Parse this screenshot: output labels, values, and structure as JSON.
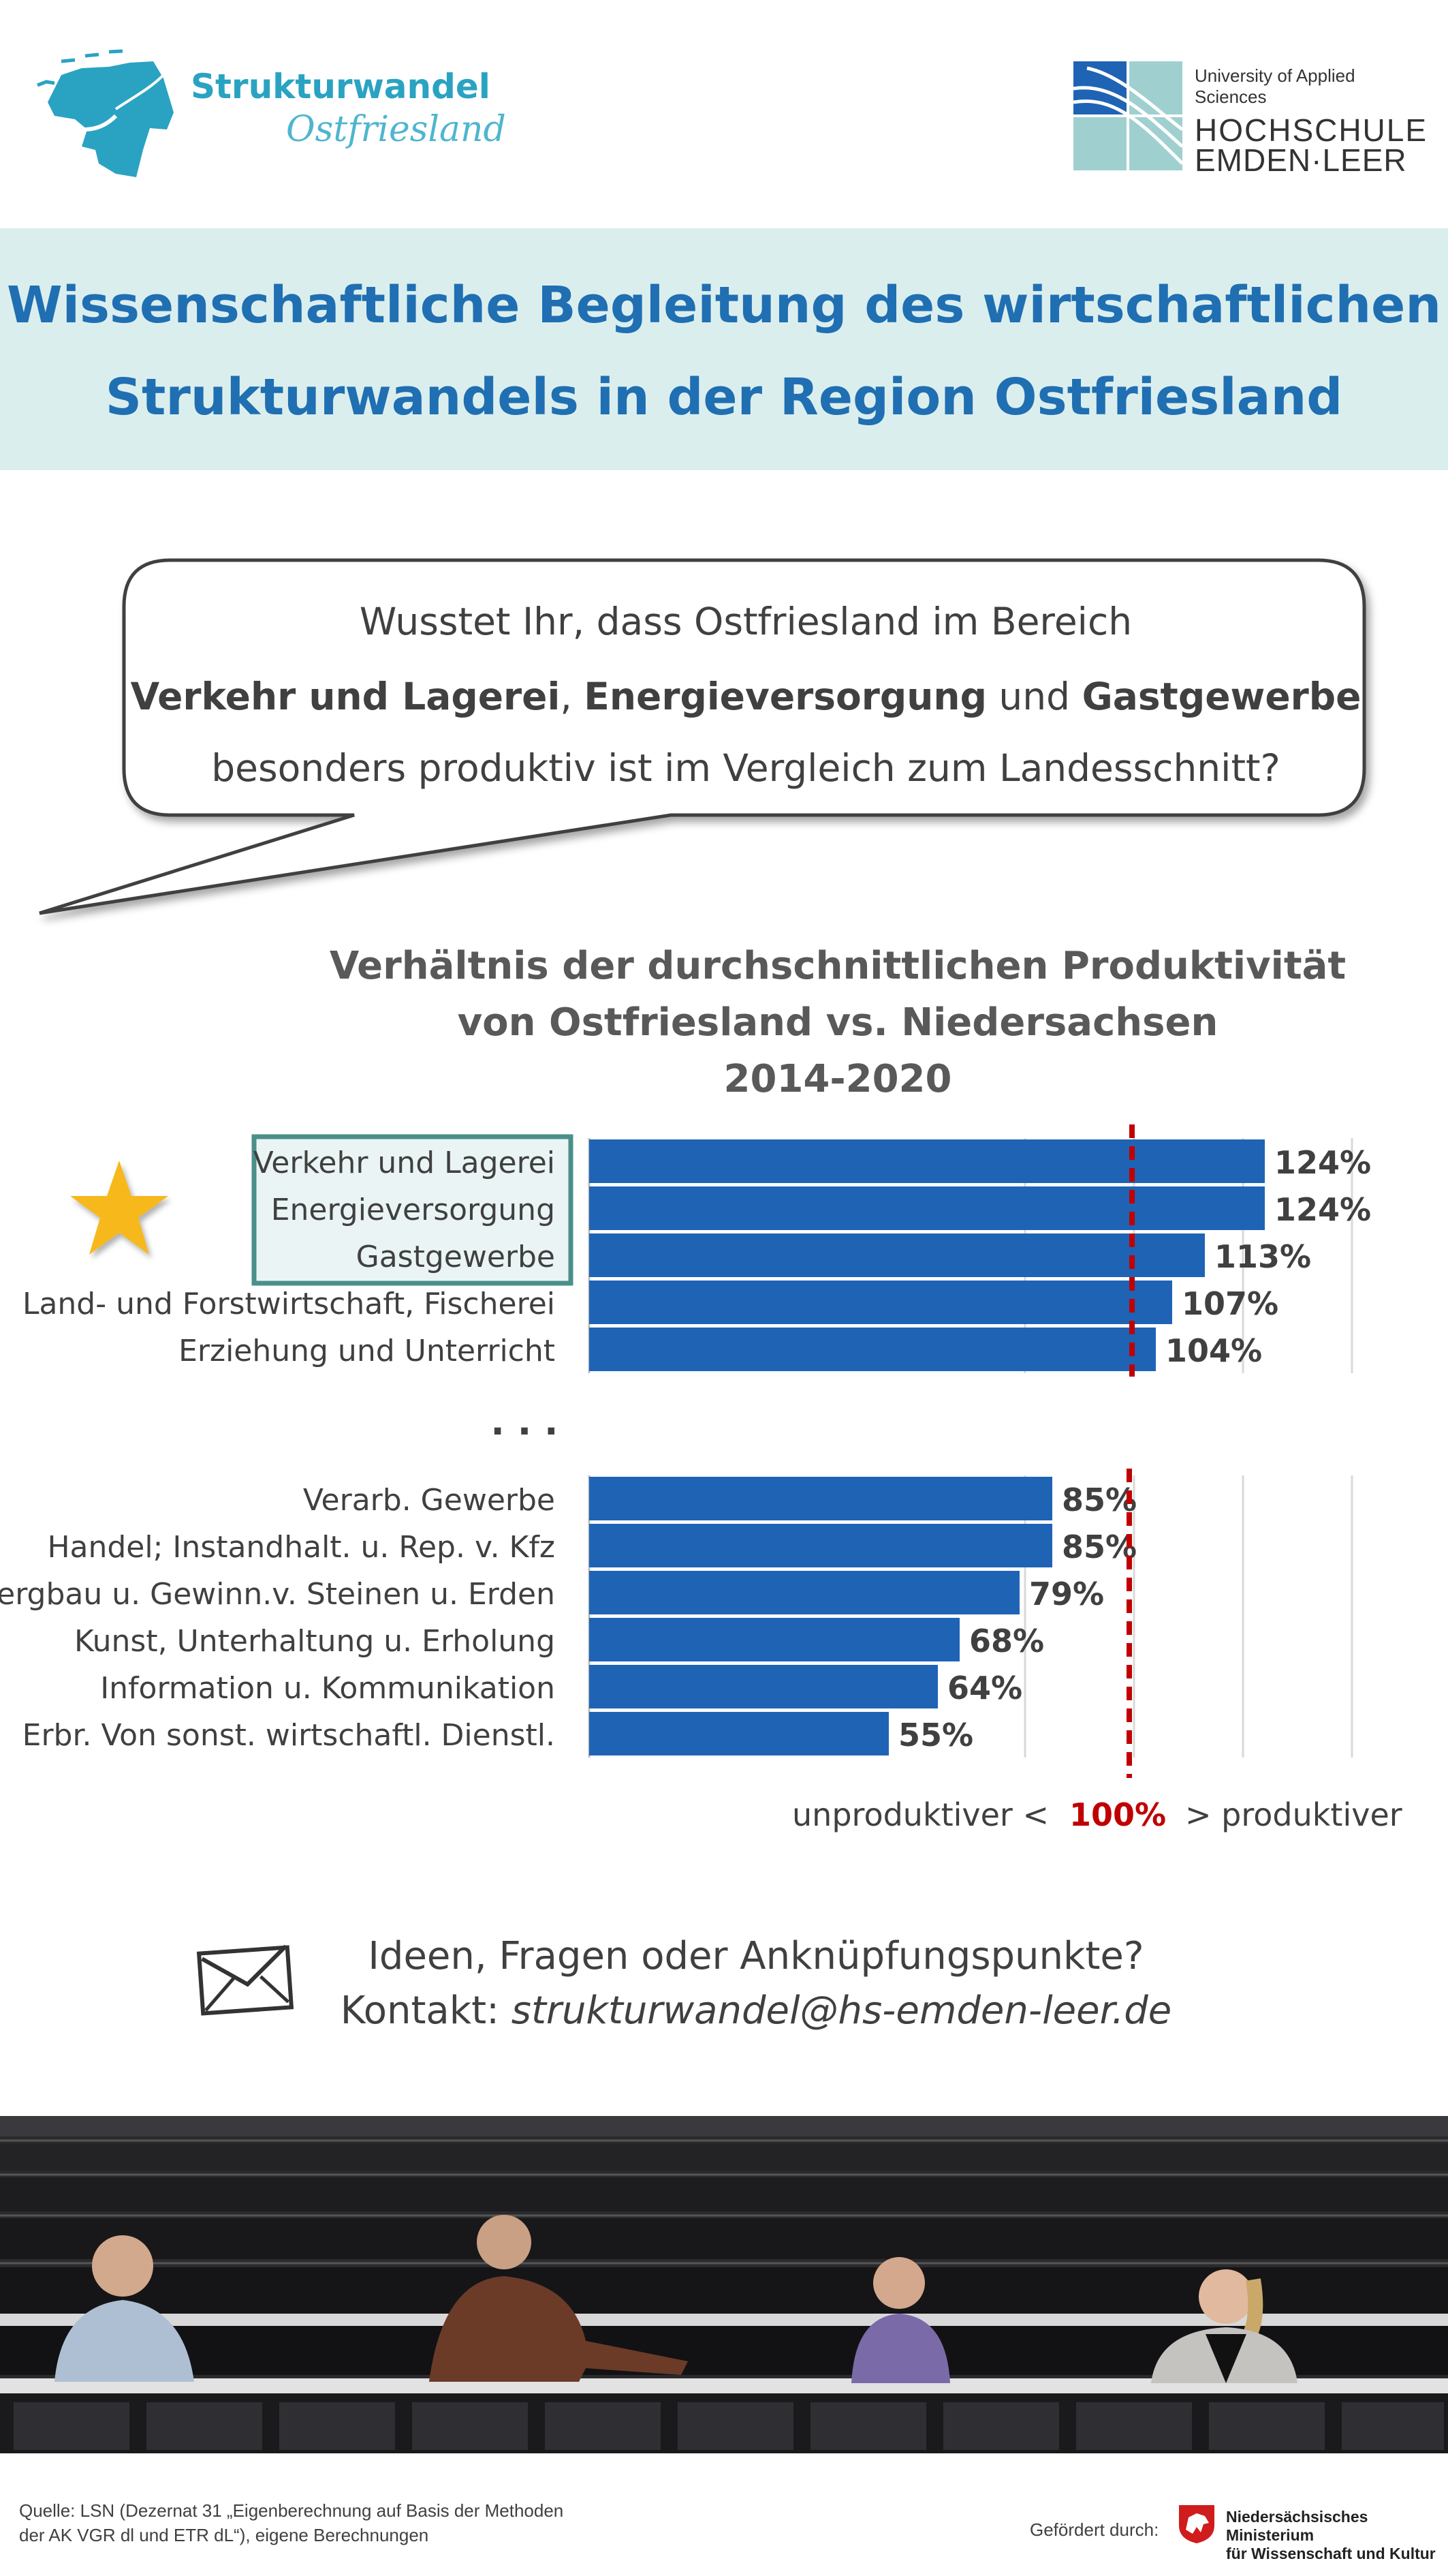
{
  "header": {
    "brand_name": "Strukturwandel",
    "brand_sub": "Ostfriesland",
    "uni_line": "University of Applied Sciences",
    "uni_name_1": "HOCHSCHULE",
    "uni_name_2": "EMDEN·LEER"
  },
  "banner": {
    "title_line1": "Wissenschaftliche Begleitung des wirtschaftlichen",
    "title_line2": "Strukturwandels in der Region Ostfriesland"
  },
  "bubble": {
    "line1": "Wusstet Ihr, dass Ostfriesland im Bereich",
    "sector1": "Verkehr und Lagerei",
    "sep1": ", ",
    "sector2": "Energieversorgung",
    "sep2": " und ",
    "sector3": "Gastgewerbe",
    "line3": "besonders produktiv ist im Vergleich zum Landesschnitt?"
  },
  "chart_data": {
    "type": "bar",
    "orientation": "horizontal",
    "title_lines": [
      "Verhältnis der durchschnittlichen Produktivität",
      "von Ostfriesland vs. Niedersachsen",
      "2014-2020"
    ],
    "reference_value": 100,
    "reference_label": "100%",
    "left_label": "unproduktiver <",
    "right_label": "> produktiver",
    "separator": ". . .",
    "bar_color": "#1f63b5",
    "reference_color": "#c00000",
    "highlight_color": "#4a8f8a",
    "top_group": [
      {
        "category": "Verkehr und Lagerei",
        "value": 124,
        "label": "124%",
        "highlight": true
      },
      {
        "category": "Energieversorgung",
        "value": 124,
        "label": "124%",
        "highlight": true
      },
      {
        "category": "Gastgewerbe",
        "value": 113,
        "label": "113%",
        "highlight": true
      },
      {
        "category": "Land- und Forstwirtschaft, Fischerei",
        "value": 107,
        "label": "107%",
        "highlight": false
      },
      {
        "category": "Erziehung und Unterricht",
        "value": 104,
        "label": "104%",
        "highlight": false
      }
    ],
    "bottom_group": [
      {
        "category": "Verarb. Gewerbe",
        "value": 85,
        "label": "85%"
      },
      {
        "category": "Handel; Instandhalt. u. Rep. v. Kfz",
        "value": 85,
        "label": "85%"
      },
      {
        "category": "Bergbau u. Gewinn.v. Steinen u. Erden",
        "value": 79,
        "label": "79%"
      },
      {
        "category": "Kunst, Unterhaltung u. Erholung",
        "value": 68,
        "label": "68%"
      },
      {
        "category": "Information u. Kommunikation",
        "value": 64,
        "label": "64%"
      },
      {
        "category": "Erbr. Von sonst. wirtschaftl. Dienstl.",
        "value": 55,
        "label": "55%"
      }
    ]
  },
  "contact": {
    "line1": "Ideen, Fragen oder Anknüpfungspunkte?",
    "prefix": "Kontakt: ",
    "email": "strukturwandel@hs-emden-leer.de"
  },
  "footer": {
    "source_line1": "Quelle: LSN (Dezernat 31 „Eigenberechnung auf Basis der Methoden",
    "source_line2": "der AK VGR dl und ETR dL“), eigene Berechnungen",
    "funded_by": "Gefördert durch:",
    "ministry_line1": "Niedersächsisches Ministerium",
    "ministry_line2": "für Wissenschaft und Kultur"
  }
}
